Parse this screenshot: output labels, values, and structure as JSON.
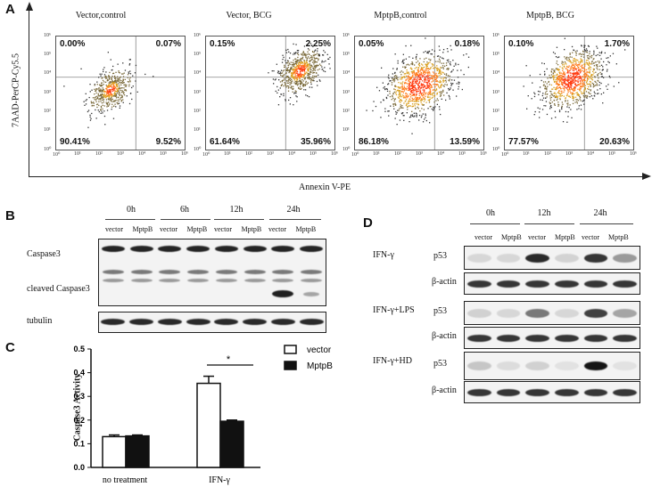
{
  "panel_a": {
    "letter": "A",
    "y_axis_label": "7AAD-PerCP-Cy5.5",
    "x_axis_label": "Annexin V-PE",
    "plots": [
      {
        "title": "Vector,control",
        "ul": "0.00%",
        "ur": "0.07%",
        "ll": "90.41%",
        "lr": "9.52%"
      },
      {
        "title": "Vector, BCG",
        "ul": "0.15%",
        "ur": "2.25%",
        "ll": "61.64%",
        "lr": "35.96%"
      },
      {
        "title": "MptpB,control",
        "ul": "0.05%",
        "ur": "0.18%",
        "ll": "86.18%",
        "lr": "13.59%"
      },
      {
        "title": "MptpB, BCG",
        "ul": "0.10%",
        "ur": "1.70%",
        "ll": "77.57%",
        "lr": "20.63%"
      }
    ],
    "y_ticks": [
      "10⁶",
      "10⁵",
      "10⁴",
      "10³",
      "10²",
      "10¹",
      "10⁰"
    ],
    "x_ticks": [
      "10⁰",
      "10¹",
      "10²",
      "10³",
      "10⁴",
      "10⁵",
      "10⁶"
    ]
  },
  "panel_b": {
    "letter": "B",
    "timepoints": [
      "0h",
      "6h",
      "12h",
      "24h"
    ],
    "lanes": [
      "vector",
      "MptpB",
      "vector",
      "MptpB",
      "vector",
      "MptpB",
      "vector",
      "MptpB"
    ],
    "labels": {
      "caspase3": "Caspase3",
      "cleaved": "cleaved Caspase3",
      "tubulin": "tubulin"
    }
  },
  "panel_c": {
    "letter": "C",
    "legend_vector": "vector",
    "legend_mptpb": "MptpB",
    "significance": "*",
    "chart_data": {
      "type": "bar",
      "categories": [
        "no treatment",
        "IFN-γ"
      ],
      "series": [
        {
          "name": "vector",
          "values": [
            0.13,
            0.355
          ],
          "errors": [
            0.007,
            0.03
          ]
        },
        {
          "name": "MptpB",
          "values": [
            0.133,
            0.195
          ],
          "errors": [
            0.004,
            0.005
          ]
        }
      ],
      "ylabel": "Caspase3 Activity",
      "xlabel": "",
      "ylim": [
        0.0,
        0.5
      ],
      "yticks": [
        "0.0",
        "0.1",
        "0.2",
        "0.3",
        "0.4",
        "0.5"
      ]
    }
  },
  "panel_d": {
    "letter": "D",
    "timepoints": [
      "0h",
      "12h",
      "24h"
    ],
    "lanes": [
      "vector",
      "MptpB",
      "vector",
      "MptpB",
      "vector",
      "MptpB"
    ],
    "conditions": [
      "IFN-γ",
      "IFN-γ+LPS",
      "IFN-γ+HD"
    ],
    "protein": "p53",
    "loading": "β-actin"
  }
}
